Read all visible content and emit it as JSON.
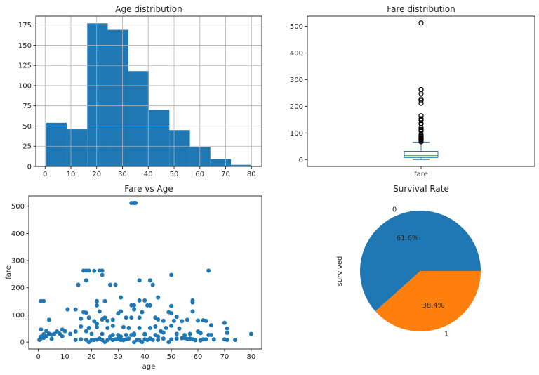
{
  "chart_data": [
    {
      "type": "bar",
      "subtype": "histogram",
      "title": "Age distribution",
      "bin_edges": [
        0.42,
        8.38,
        16.34,
        24.29,
        32.25,
        40.21,
        48.17,
        56.13,
        64.08,
        72.04,
        80.0
      ],
      "values": [
        54,
        46,
        177,
        169,
        118,
        70,
        45,
        24,
        9,
        2
      ],
      "xlim": [
        -3.6,
        84
      ],
      "ylim": [
        0,
        186
      ],
      "xticks": [
        0,
        10,
        20,
        30,
        40,
        50,
        60,
        70,
        80
      ],
      "yticks": [
        0,
        25,
        50,
        75,
        100,
        125,
        150,
        175
      ],
      "grid": true,
      "color": "#1f77b4"
    },
    {
      "type": "box",
      "title": "Fare distribution",
      "categories": [
        "fare"
      ],
      "stats": {
        "whislo": 0,
        "q1": 7.9,
        "med": 14.45,
        "q3": 31,
        "whishi": 65
      },
      "outliers": [
        512.33,
        263,
        262.4,
        247.5,
        227.5,
        221.8,
        211.5,
        164.9,
        153.5,
        151.6,
        146.5,
        135.6,
        133.7,
        120,
        113.3,
        110.9,
        106.4,
        93.5,
        90,
        86.5,
        83.2,
        82.2,
        80,
        79.2,
        78.3,
        77.3,
        76.7,
        75.3,
        73.5,
        71.3,
        69.5,
        66.6
      ],
      "ylim": [
        -25.6,
        538
      ],
      "yticks": [
        0,
        100,
        200,
        300,
        400,
        500
      ],
      "grid": false,
      "box_color": "#1f77b4",
      "median_color": "#2ca02c"
    },
    {
      "type": "scatter",
      "title": "Fare vs Age",
      "xlabel": "age",
      "ylabel": "fare",
      "xlim": [
        -3.6,
        84
      ],
      "ylim": [
        -25.6,
        538
      ],
      "xticks": [
        0,
        10,
        20,
        30,
        40,
        50,
        60,
        70,
        80
      ],
      "yticks": [
        0,
        100,
        200,
        300,
        400,
        500
      ],
      "grid": false,
      "color": "#1f77b4",
      "points": [
        [
          35,
          512
        ],
        [
          36,
          512
        ],
        [
          36.5,
          512
        ],
        [
          17,
          263
        ],
        [
          18,
          263
        ],
        [
          19,
          263
        ],
        [
          21,
          262
        ],
        [
          23,
          263
        ],
        [
          24,
          263
        ],
        [
          24,
          247
        ],
        [
          64,
          263
        ],
        [
          50,
          247
        ],
        [
          18,
          227
        ],
        [
          38,
          227
        ],
        [
          42,
          227
        ],
        [
          15,
          211
        ],
        [
          27,
          211
        ],
        [
          29,
          211
        ],
        [
          43,
          211
        ],
        [
          1,
          151
        ],
        [
          2,
          151
        ],
        [
          22,
          151
        ],
        [
          25,
          151
        ],
        [
          31,
          164
        ],
        [
          45,
          164
        ],
        [
          38,
          153
        ],
        [
          40,
          153
        ],
        [
          58,
          153
        ],
        [
          58,
          146
        ],
        [
          22,
          135
        ],
        [
          35,
          135
        ],
        [
          36,
          135
        ],
        [
          41,
          135
        ],
        [
          42,
          135
        ],
        [
          50,
          133
        ],
        [
          36,
          120
        ],
        [
          11,
          120
        ],
        [
          14,
          120
        ],
        [
          23,
          113
        ],
        [
          31,
          113
        ],
        [
          58,
          113
        ],
        [
          17,
          110
        ],
        [
          18,
          108
        ],
        [
          39,
          110
        ],
        [
          49,
          110
        ],
        [
          30,
          106
        ],
        [
          50,
          106
        ],
        [
          4,
          82
        ],
        [
          16,
          86
        ],
        [
          19,
          90
        ],
        [
          21,
          77
        ],
        [
          24,
          83
        ],
        [
          25,
          90
        ],
        [
          26,
          78
        ],
        [
          28,
          82
        ],
        [
          33,
          90
        ],
        [
          35,
          90
        ],
        [
          38,
          90
        ],
        [
          44,
          90
        ],
        [
          45,
          83
        ],
        [
          47,
          78
        ],
        [
          51,
          78
        ],
        [
          52,
          93
        ],
        [
          54,
          77
        ],
        [
          56,
          82
        ],
        [
          60,
          79
        ],
        [
          62,
          80
        ],
        [
          63,
          78
        ],
        [
          70,
          71
        ],
        [
          71,
          50
        ],
        [
          71,
          34
        ],
        [
          65,
          62
        ],
        [
          80,
          30
        ],
        [
          74,
          8
        ],
        [
          70,
          10
        ],
        [
          71,
          8
        ],
        [
          66,
          10
        ],
        [
          65,
          26
        ],
        [
          64,
          26
        ],
        [
          61,
          33
        ],
        [
          60,
          39
        ],
        [
          57,
          30
        ],
        [
          55,
          26
        ],
        [
          53,
          50
        ],
        [
          50,
          60
        ],
        [
          48,
          52
        ],
        [
          46,
          40
        ],
        [
          44,
          57
        ],
        [
          42,
          52
        ],
        [
          40,
          30
        ],
        [
          38,
          52
        ],
        [
          36,
          26
        ],
        [
          34,
          52
        ],
        [
          32,
          55
        ],
        [
          30,
          26
        ],
        [
          28,
          60
        ],
        [
          26,
          52
        ],
        [
          24,
          30
        ],
        [
          22,
          55
        ],
        [
          20,
          30
        ],
        [
          18,
          40
        ],
        [
          16,
          57
        ],
        [
          14,
          39
        ],
        [
          12,
          30
        ],
        [
          10,
          40
        ],
        [
          9,
          46
        ],
        [
          8,
          31
        ],
        [
          7,
          39
        ],
        [
          6,
          30
        ],
        [
          5,
          27
        ],
        [
          4,
          31
        ],
        [
          3,
          41
        ],
        [
          2,
          29
        ],
        [
          1,
          46
        ],
        [
          1,
          20
        ],
        [
          0.8,
          12
        ],
        [
          0.4,
          8
        ],
        [
          2,
          15
        ],
        [
          3,
          21
        ],
        [
          5,
          12
        ],
        [
          9,
          21
        ],
        [
          14,
          8
        ],
        [
          16,
          10
        ],
        [
          18,
          8
        ],
        [
          19,
          0
        ],
        [
          20,
          7
        ],
        [
          21,
          8
        ],
        [
          22,
          9
        ],
        [
          23,
          13
        ],
        [
          24,
          8
        ],
        [
          25,
          0
        ],
        [
          26,
          7
        ],
        [
          27,
          14
        ],
        [
          28,
          8
        ],
        [
          29,
          10
        ],
        [
          30,
          13
        ],
        [
          31,
          8
        ],
        [
          32,
          7
        ],
        [
          33,
          10
        ],
        [
          34,
          13
        ],
        [
          35,
          26
        ],
        [
          36,
          0
        ],
        [
          37,
          8
        ],
        [
          38,
          7
        ],
        [
          39,
          0
        ],
        [
          40,
          10
        ],
        [
          41,
          8
        ],
        [
          42,
          13
        ],
        [
          43,
          8
        ],
        [
          44,
          26
        ],
        [
          45,
          8
        ],
        [
          47,
          13
        ],
        [
          49,
          0
        ],
        [
          50,
          10
        ],
        [
          52,
          13
        ],
        [
          54,
          14
        ],
        [
          56,
          11
        ],
        [
          58,
          10
        ],
        [
          59,
          7
        ],
        [
          61,
          6
        ],
        [
          62,
          10
        ],
        [
          63,
          10
        ],
        [
          19,
          52
        ],
        [
          22,
          67
        ],
        [
          28,
          26
        ],
        [
          33,
          26
        ],
        [
          36,
          31
        ],
        [
          40,
          27
        ],
        [
          27,
          20
        ],
        [
          31,
          20
        ],
        [
          45,
          20
        ],
        [
          47,
          35
        ],
        [
          52,
          30
        ],
        [
          55,
          15
        ],
        [
          57,
          13
        ]
      ]
    },
    {
      "type": "pie",
      "title": "Survival Rate",
      "ylabel": "survived",
      "labels": [
        "0",
        "1"
      ],
      "values": [
        61.6,
        38.4
      ],
      "autopct": [
        "61.6%",
        "38.4%"
      ],
      "colors": [
        "#1f77b4",
        "#ff7f0e"
      ],
      "startangle": 0,
      "direction": "counterclockwise"
    }
  ]
}
